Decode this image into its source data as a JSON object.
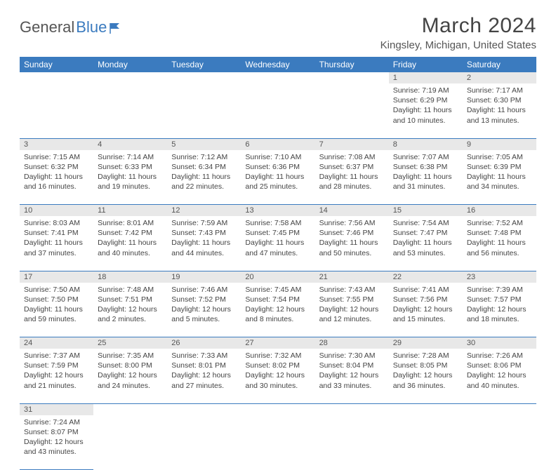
{
  "brand": {
    "part1": "General",
    "part2": "Blue"
  },
  "title": "March 2024",
  "location": "Kingsley, Michigan, United States",
  "day_headers": [
    "Sunday",
    "Monday",
    "Tuesday",
    "Wednesday",
    "Thursday",
    "Friday",
    "Saturday"
  ],
  "colors": {
    "header_bg": "#3b7bbf",
    "header_text": "#ffffff",
    "daynum_bg": "#e8e8e8",
    "text": "#444444",
    "border": "#3b7bbf"
  },
  "weeks": [
    {
      "nums": [
        "",
        "",
        "",
        "",
        "",
        "1",
        "2"
      ],
      "cells": [
        {},
        {},
        {},
        {},
        {},
        {
          "sunrise": "Sunrise: 7:19 AM",
          "sunset": "Sunset: 6:29 PM",
          "daylight": "Daylight: 11 hours and 10 minutes."
        },
        {
          "sunrise": "Sunrise: 7:17 AM",
          "sunset": "Sunset: 6:30 PM",
          "daylight": "Daylight: 11 hours and 13 minutes."
        }
      ]
    },
    {
      "nums": [
        "3",
        "4",
        "5",
        "6",
        "7",
        "8",
        "9"
      ],
      "cells": [
        {
          "sunrise": "Sunrise: 7:15 AM",
          "sunset": "Sunset: 6:32 PM",
          "daylight": "Daylight: 11 hours and 16 minutes."
        },
        {
          "sunrise": "Sunrise: 7:14 AM",
          "sunset": "Sunset: 6:33 PM",
          "daylight": "Daylight: 11 hours and 19 minutes."
        },
        {
          "sunrise": "Sunrise: 7:12 AM",
          "sunset": "Sunset: 6:34 PM",
          "daylight": "Daylight: 11 hours and 22 minutes."
        },
        {
          "sunrise": "Sunrise: 7:10 AM",
          "sunset": "Sunset: 6:36 PM",
          "daylight": "Daylight: 11 hours and 25 minutes."
        },
        {
          "sunrise": "Sunrise: 7:08 AM",
          "sunset": "Sunset: 6:37 PM",
          "daylight": "Daylight: 11 hours and 28 minutes."
        },
        {
          "sunrise": "Sunrise: 7:07 AM",
          "sunset": "Sunset: 6:38 PM",
          "daylight": "Daylight: 11 hours and 31 minutes."
        },
        {
          "sunrise": "Sunrise: 7:05 AM",
          "sunset": "Sunset: 6:39 PM",
          "daylight": "Daylight: 11 hours and 34 minutes."
        }
      ]
    },
    {
      "nums": [
        "10",
        "11",
        "12",
        "13",
        "14",
        "15",
        "16"
      ],
      "cells": [
        {
          "sunrise": "Sunrise: 8:03 AM",
          "sunset": "Sunset: 7:41 PM",
          "daylight": "Daylight: 11 hours and 37 minutes."
        },
        {
          "sunrise": "Sunrise: 8:01 AM",
          "sunset": "Sunset: 7:42 PM",
          "daylight": "Daylight: 11 hours and 40 minutes."
        },
        {
          "sunrise": "Sunrise: 7:59 AM",
          "sunset": "Sunset: 7:43 PM",
          "daylight": "Daylight: 11 hours and 44 minutes."
        },
        {
          "sunrise": "Sunrise: 7:58 AM",
          "sunset": "Sunset: 7:45 PM",
          "daylight": "Daylight: 11 hours and 47 minutes."
        },
        {
          "sunrise": "Sunrise: 7:56 AM",
          "sunset": "Sunset: 7:46 PM",
          "daylight": "Daylight: 11 hours and 50 minutes."
        },
        {
          "sunrise": "Sunrise: 7:54 AM",
          "sunset": "Sunset: 7:47 PM",
          "daylight": "Daylight: 11 hours and 53 minutes."
        },
        {
          "sunrise": "Sunrise: 7:52 AM",
          "sunset": "Sunset: 7:48 PM",
          "daylight": "Daylight: 11 hours and 56 minutes."
        }
      ]
    },
    {
      "nums": [
        "17",
        "18",
        "19",
        "20",
        "21",
        "22",
        "23"
      ],
      "cells": [
        {
          "sunrise": "Sunrise: 7:50 AM",
          "sunset": "Sunset: 7:50 PM",
          "daylight": "Daylight: 11 hours and 59 minutes."
        },
        {
          "sunrise": "Sunrise: 7:48 AM",
          "sunset": "Sunset: 7:51 PM",
          "daylight": "Daylight: 12 hours and 2 minutes."
        },
        {
          "sunrise": "Sunrise: 7:46 AM",
          "sunset": "Sunset: 7:52 PM",
          "daylight": "Daylight: 12 hours and 5 minutes."
        },
        {
          "sunrise": "Sunrise: 7:45 AM",
          "sunset": "Sunset: 7:54 PM",
          "daylight": "Daylight: 12 hours and 8 minutes."
        },
        {
          "sunrise": "Sunrise: 7:43 AM",
          "sunset": "Sunset: 7:55 PM",
          "daylight": "Daylight: 12 hours and 12 minutes."
        },
        {
          "sunrise": "Sunrise: 7:41 AM",
          "sunset": "Sunset: 7:56 PM",
          "daylight": "Daylight: 12 hours and 15 minutes."
        },
        {
          "sunrise": "Sunrise: 7:39 AM",
          "sunset": "Sunset: 7:57 PM",
          "daylight": "Daylight: 12 hours and 18 minutes."
        }
      ]
    },
    {
      "nums": [
        "24",
        "25",
        "26",
        "27",
        "28",
        "29",
        "30"
      ],
      "cells": [
        {
          "sunrise": "Sunrise: 7:37 AM",
          "sunset": "Sunset: 7:59 PM",
          "daylight": "Daylight: 12 hours and 21 minutes."
        },
        {
          "sunrise": "Sunrise: 7:35 AM",
          "sunset": "Sunset: 8:00 PM",
          "daylight": "Daylight: 12 hours and 24 minutes."
        },
        {
          "sunrise": "Sunrise: 7:33 AM",
          "sunset": "Sunset: 8:01 PM",
          "daylight": "Daylight: 12 hours and 27 minutes."
        },
        {
          "sunrise": "Sunrise: 7:32 AM",
          "sunset": "Sunset: 8:02 PM",
          "daylight": "Daylight: 12 hours and 30 minutes."
        },
        {
          "sunrise": "Sunrise: 7:30 AM",
          "sunset": "Sunset: 8:04 PM",
          "daylight": "Daylight: 12 hours and 33 minutes."
        },
        {
          "sunrise": "Sunrise: 7:28 AM",
          "sunset": "Sunset: 8:05 PM",
          "daylight": "Daylight: 12 hours and 36 minutes."
        },
        {
          "sunrise": "Sunrise: 7:26 AM",
          "sunset": "Sunset: 8:06 PM",
          "daylight": "Daylight: 12 hours and 40 minutes."
        }
      ]
    },
    {
      "nums": [
        "31",
        "",
        "",
        "",
        "",
        "",
        ""
      ],
      "cells": [
        {
          "sunrise": "Sunrise: 7:24 AM",
          "sunset": "Sunset: 8:07 PM",
          "daylight": "Daylight: 12 hours and 43 minutes."
        },
        {},
        {},
        {},
        {},
        {},
        {}
      ]
    }
  ]
}
